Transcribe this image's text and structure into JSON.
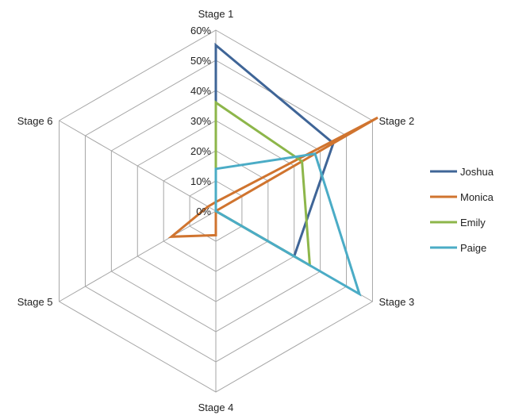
{
  "chart_data": {
    "type": "radar",
    "categories": [
      "Stage 1",
      "Stage 2",
      "Stage 3",
      "Stage 4",
      "Stage 5",
      "Stage 6"
    ],
    "r_ticks": [
      "0%",
      "10%",
      "20%",
      "30%",
      "40%",
      "50%",
      "60%"
    ],
    "rlim": [
      0,
      60
    ],
    "grid": true,
    "legend_position": "right",
    "series": [
      {
        "name": "Joshua",
        "color": "#3F6597",
        "values": [
          55,
          45,
          30,
          0,
          0,
          0
        ]
      },
      {
        "name": "Monica",
        "color": "#D0742F",
        "values": [
          3,
          62,
          0,
          8,
          17,
          3
        ]
      },
      {
        "name": "Emily",
        "color": "#8DB64A",
        "values": [
          36,
          33,
          36,
          0,
          0,
          0
        ]
      },
      {
        "name": "Paige",
        "color": "#4BACC6",
        "values": [
          14,
          38,
          55,
          0,
          0,
          0
        ]
      }
    ]
  }
}
